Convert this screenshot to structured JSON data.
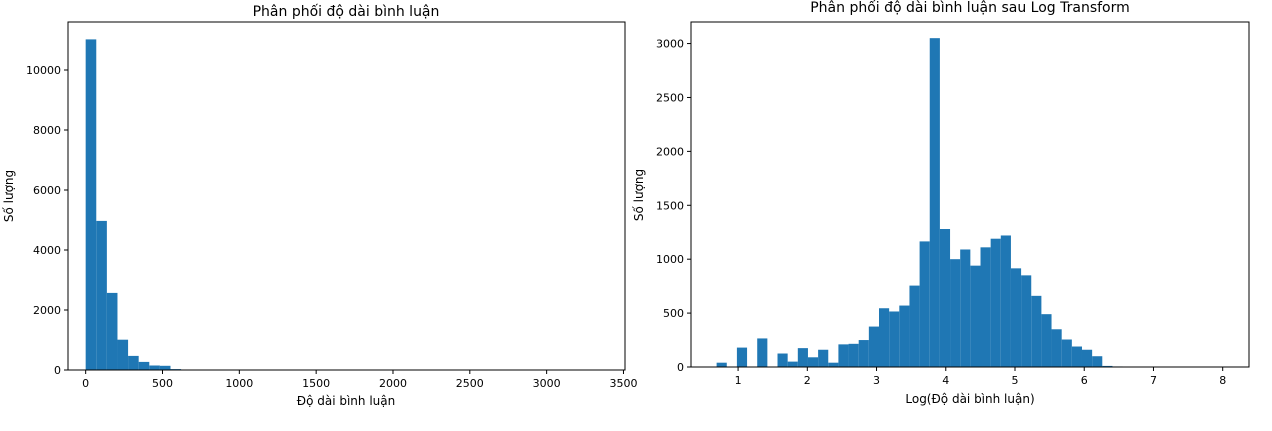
{
  "colors": {
    "bar": "#1f77b4",
    "axis": "#000000"
  },
  "chart_data": [
    {
      "type": "bar",
      "title": "Phân phối độ dài bình luận",
      "xlabel": "Độ dài bình luận",
      "ylabel": "Số lượng",
      "xlim": [
        -115,
        3510
      ],
      "ylim": [
        0,
        11600
      ],
      "xticks": [
        0,
        500,
        1000,
        1500,
        2000,
        2500,
        3000,
        3500
      ],
      "yticks": [
        0,
        2000,
        4000,
        6000,
        8000,
        10000
      ],
      "bin_start": 0,
      "bin_width": 69,
      "values": [
        11020,
        4970,
        2570,
        1010,
        470,
        270,
        150,
        140,
        30,
        8,
        4,
        3,
        2,
        2,
        1,
        1,
        1,
        1,
        0,
        0,
        0,
        0,
        0,
        0,
        0,
        0,
        0,
        0,
        0,
        0,
        0,
        0,
        0,
        0,
        0,
        0,
        0,
        0,
        0,
        0,
        0,
        0,
        0,
        0,
        0,
        0,
        0,
        0,
        0,
        1
      ]
    },
    {
      "type": "bar",
      "title": "Phân phối độ dài bình luận sau Log Transform",
      "xlabel": "Log(Độ dài bình luận)",
      "ylabel": "Số lượng",
      "xlim": [
        0.32,
        8.38
      ],
      "ylim": [
        0,
        3200
      ],
      "xticks": [
        1,
        2,
        3,
        4,
        5,
        6,
        7,
        8
      ],
      "yticks": [
        0,
        500,
        1000,
        1500,
        2000,
        2500,
        3000
      ],
      "bin_start": 0.69,
      "bin_width": 0.1466,
      "values": [
        40,
        0,
        180,
        0,
        265,
        0,
        125,
        50,
        175,
        90,
        160,
        40,
        210,
        215,
        250,
        375,
        545,
        515,
        570,
        755,
        1165,
        3050,
        1280,
        1000,
        1090,
        940,
        1110,
        1190,
        1220,
        915,
        850,
        660,
        490,
        350,
        255,
        190,
        160,
        100,
        10,
        5,
        2,
        1,
        1,
        1,
        1,
        1,
        1,
        1,
        0,
        1
      ]
    }
  ]
}
